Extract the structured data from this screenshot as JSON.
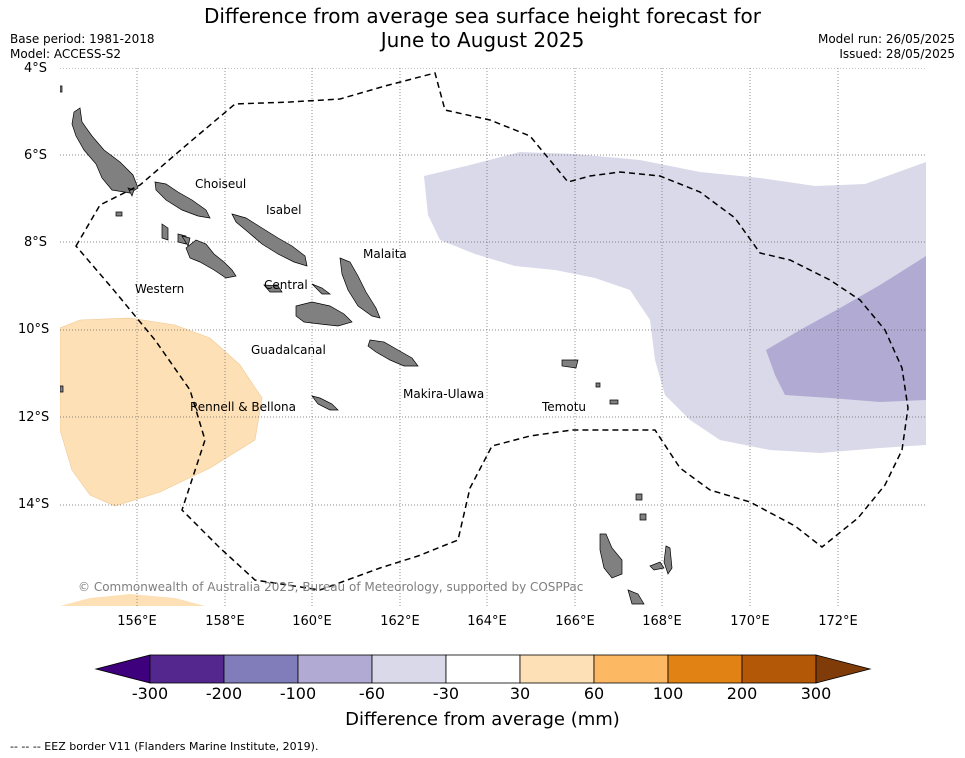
{
  "title_line1": "Difference from average sea surface height forecast for",
  "title_line2": "June to August 2025",
  "meta": {
    "base_period": "Base period: 1981-2018",
    "model": "Model: ACCESS-S2",
    "model_run": "Model run: 26/05/2025",
    "issued": "Issued: 28/05/2025"
  },
  "lat_labels": [
    "4°S",
    "6°S",
    "8°S",
    "10°S",
    "12°S",
    "14°S"
  ],
  "lon_labels": [
    "156°E",
    "158°E",
    "160°E",
    "162°E",
    "164°E",
    "166°E",
    "168°E",
    "170°E",
    "172°E"
  ],
  "places": [
    "Choiseul",
    "Isabel",
    "Malaita",
    "Western",
    "Central",
    "Guadalcanal",
    "Makira-Ulawa",
    "Rennell & Bellona",
    "Temotu"
  ],
  "copyright": "© Commonwealth of Australia 2025, Bureau of Meteorology, supported by COSPPac",
  "colorbar": {
    "ticks": [
      "-300",
      "-200",
      "-100",
      "-60",
      "-30",
      "30",
      "60",
      "100",
      "200",
      "300"
    ],
    "colors": [
      "#3f007d",
      "#54278f",
      "#807dba",
      "#b1abd3",
      "#d9d9ea",
      "#ffffff",
      "#fee0b6",
      "#fdb863",
      "#e08214",
      "#b35806",
      "#7f3b08"
    ],
    "label": "Difference from average (mm)"
  },
  "footnote": "--  --  -- EEZ border V11 (Flanders Marine Institute, 2019).",
  "colors": {
    "land": "#808080",
    "eez_border": "#000000",
    "light_purple": "#d9d9ea",
    "mid_purple": "#b1abd3",
    "light_orange": "#fee0b6"
  }
}
